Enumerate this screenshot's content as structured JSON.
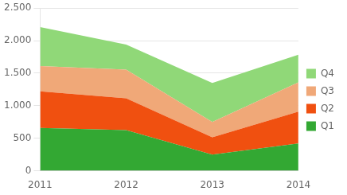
{
  "chart_data": {
    "type": "area",
    "stacked": true,
    "x": [
      2011,
      2012,
      2013,
      2014
    ],
    "series": [
      {
        "name": "Q1",
        "color": "#33a833",
        "values": [
          660,
          625,
          250,
          420
        ]
      },
      {
        "name": "Q2",
        "color": "#f05010",
        "values": [
          560,
          490,
          265,
          490
        ]
      },
      {
        "name": "Q3",
        "color": "#f0a878",
        "values": [
          390,
          440,
          235,
          450
        ]
      },
      {
        "name": "Q4",
        "color": "#90d878",
        "values": [
          600,
          385,
          600,
          425
        ]
      }
    ],
    "xlim": [
      2011,
      2014
    ],
    "xticks": [
      2011,
      2012,
      2013,
      2014
    ],
    "ylim": [
      0,
      2500
    ],
    "yticks": [
      0,
      500,
      {
        "value": 1000,
        "label": "1.000"
      },
      {
        "value": 1500,
        "label": "1.500"
      },
      {
        "value": 2000,
        "label": "2.000"
      },
      {
        "value": 2500,
        "label": "2.500"
      }
    ],
    "grid": "y",
    "legend": "right"
  }
}
